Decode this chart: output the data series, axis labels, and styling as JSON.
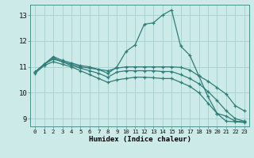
{
  "xlabel": "Humidex (Indice chaleur)",
  "xlim": [
    -0.5,
    23.5
  ],
  "ylim": [
    8.7,
    13.4
  ],
  "bg_color": "#cceae7",
  "grid_color": "#a8d5d1",
  "line_color": "#2e7d78",
  "xticks": [
    0,
    1,
    2,
    3,
    4,
    5,
    6,
    7,
    8,
    9,
    10,
    11,
    12,
    13,
    14,
    15,
    16,
    17,
    18,
    19,
    20,
    21,
    22,
    23
  ],
  "yticks": [
    9,
    10,
    11,
    12,
    13
  ],
  "lines": [
    {
      "x": [
        0,
        1,
        2,
        3,
        4,
        5,
        6,
        7,
        8,
        9,
        10,
        11,
        12,
        13,
        14,
        15,
        16,
        17,
        18,
        19,
        20,
        21,
        22,
        23
      ],
      "y": [
        10.8,
        11.1,
        11.4,
        11.25,
        11.15,
        11.05,
        11.0,
        10.9,
        10.75,
        11.0,
        11.6,
        11.85,
        12.65,
        12.7,
        13.0,
        13.2,
        11.8,
        11.45,
        10.65,
        9.85,
        9.2,
        9.1,
        8.9,
        8.88
      ]
    },
    {
      "x": [
        0,
        1,
        2,
        3,
        4,
        5,
        6,
        7,
        8,
        9,
        10,
        11,
        12,
        13,
        14,
        15,
        16,
        17,
        18,
        19,
        20,
        21,
        22,
        23
      ],
      "y": [
        10.8,
        11.1,
        11.35,
        11.2,
        11.1,
        11.0,
        10.95,
        10.9,
        10.85,
        10.95,
        11.0,
        11.0,
        11.0,
        11.0,
        11.0,
        11.0,
        10.98,
        10.88,
        10.65,
        10.45,
        10.2,
        9.95,
        9.5,
        9.3
      ]
    },
    {
      "x": [
        0,
        1,
        2,
        3,
        4,
        5,
        6,
        7,
        8,
        9,
        10,
        11,
        12,
        13,
        14,
        15,
        16,
        17,
        18,
        19,
        20,
        21,
        22,
        23
      ],
      "y": [
        10.8,
        11.1,
        11.3,
        11.2,
        11.05,
        10.95,
        10.85,
        10.75,
        10.6,
        10.8,
        10.85,
        10.85,
        10.85,
        10.85,
        10.82,
        10.82,
        10.7,
        10.55,
        10.35,
        10.05,
        9.7,
        9.3,
        9.0,
        8.9
      ]
    },
    {
      "x": [
        0,
        1,
        2,
        3,
        4,
        5,
        6,
        7,
        8,
        9,
        10,
        11,
        12,
        13,
        14,
        15,
        16,
        17,
        18,
        19,
        20,
        21,
        22,
        23
      ],
      "y": [
        10.75,
        11.05,
        11.2,
        11.1,
        11.0,
        10.85,
        10.7,
        10.55,
        10.4,
        10.5,
        10.55,
        10.6,
        10.6,
        10.58,
        10.55,
        10.55,
        10.4,
        10.25,
        10.0,
        9.6,
        9.2,
        8.9,
        8.88,
        8.85
      ]
    }
  ]
}
